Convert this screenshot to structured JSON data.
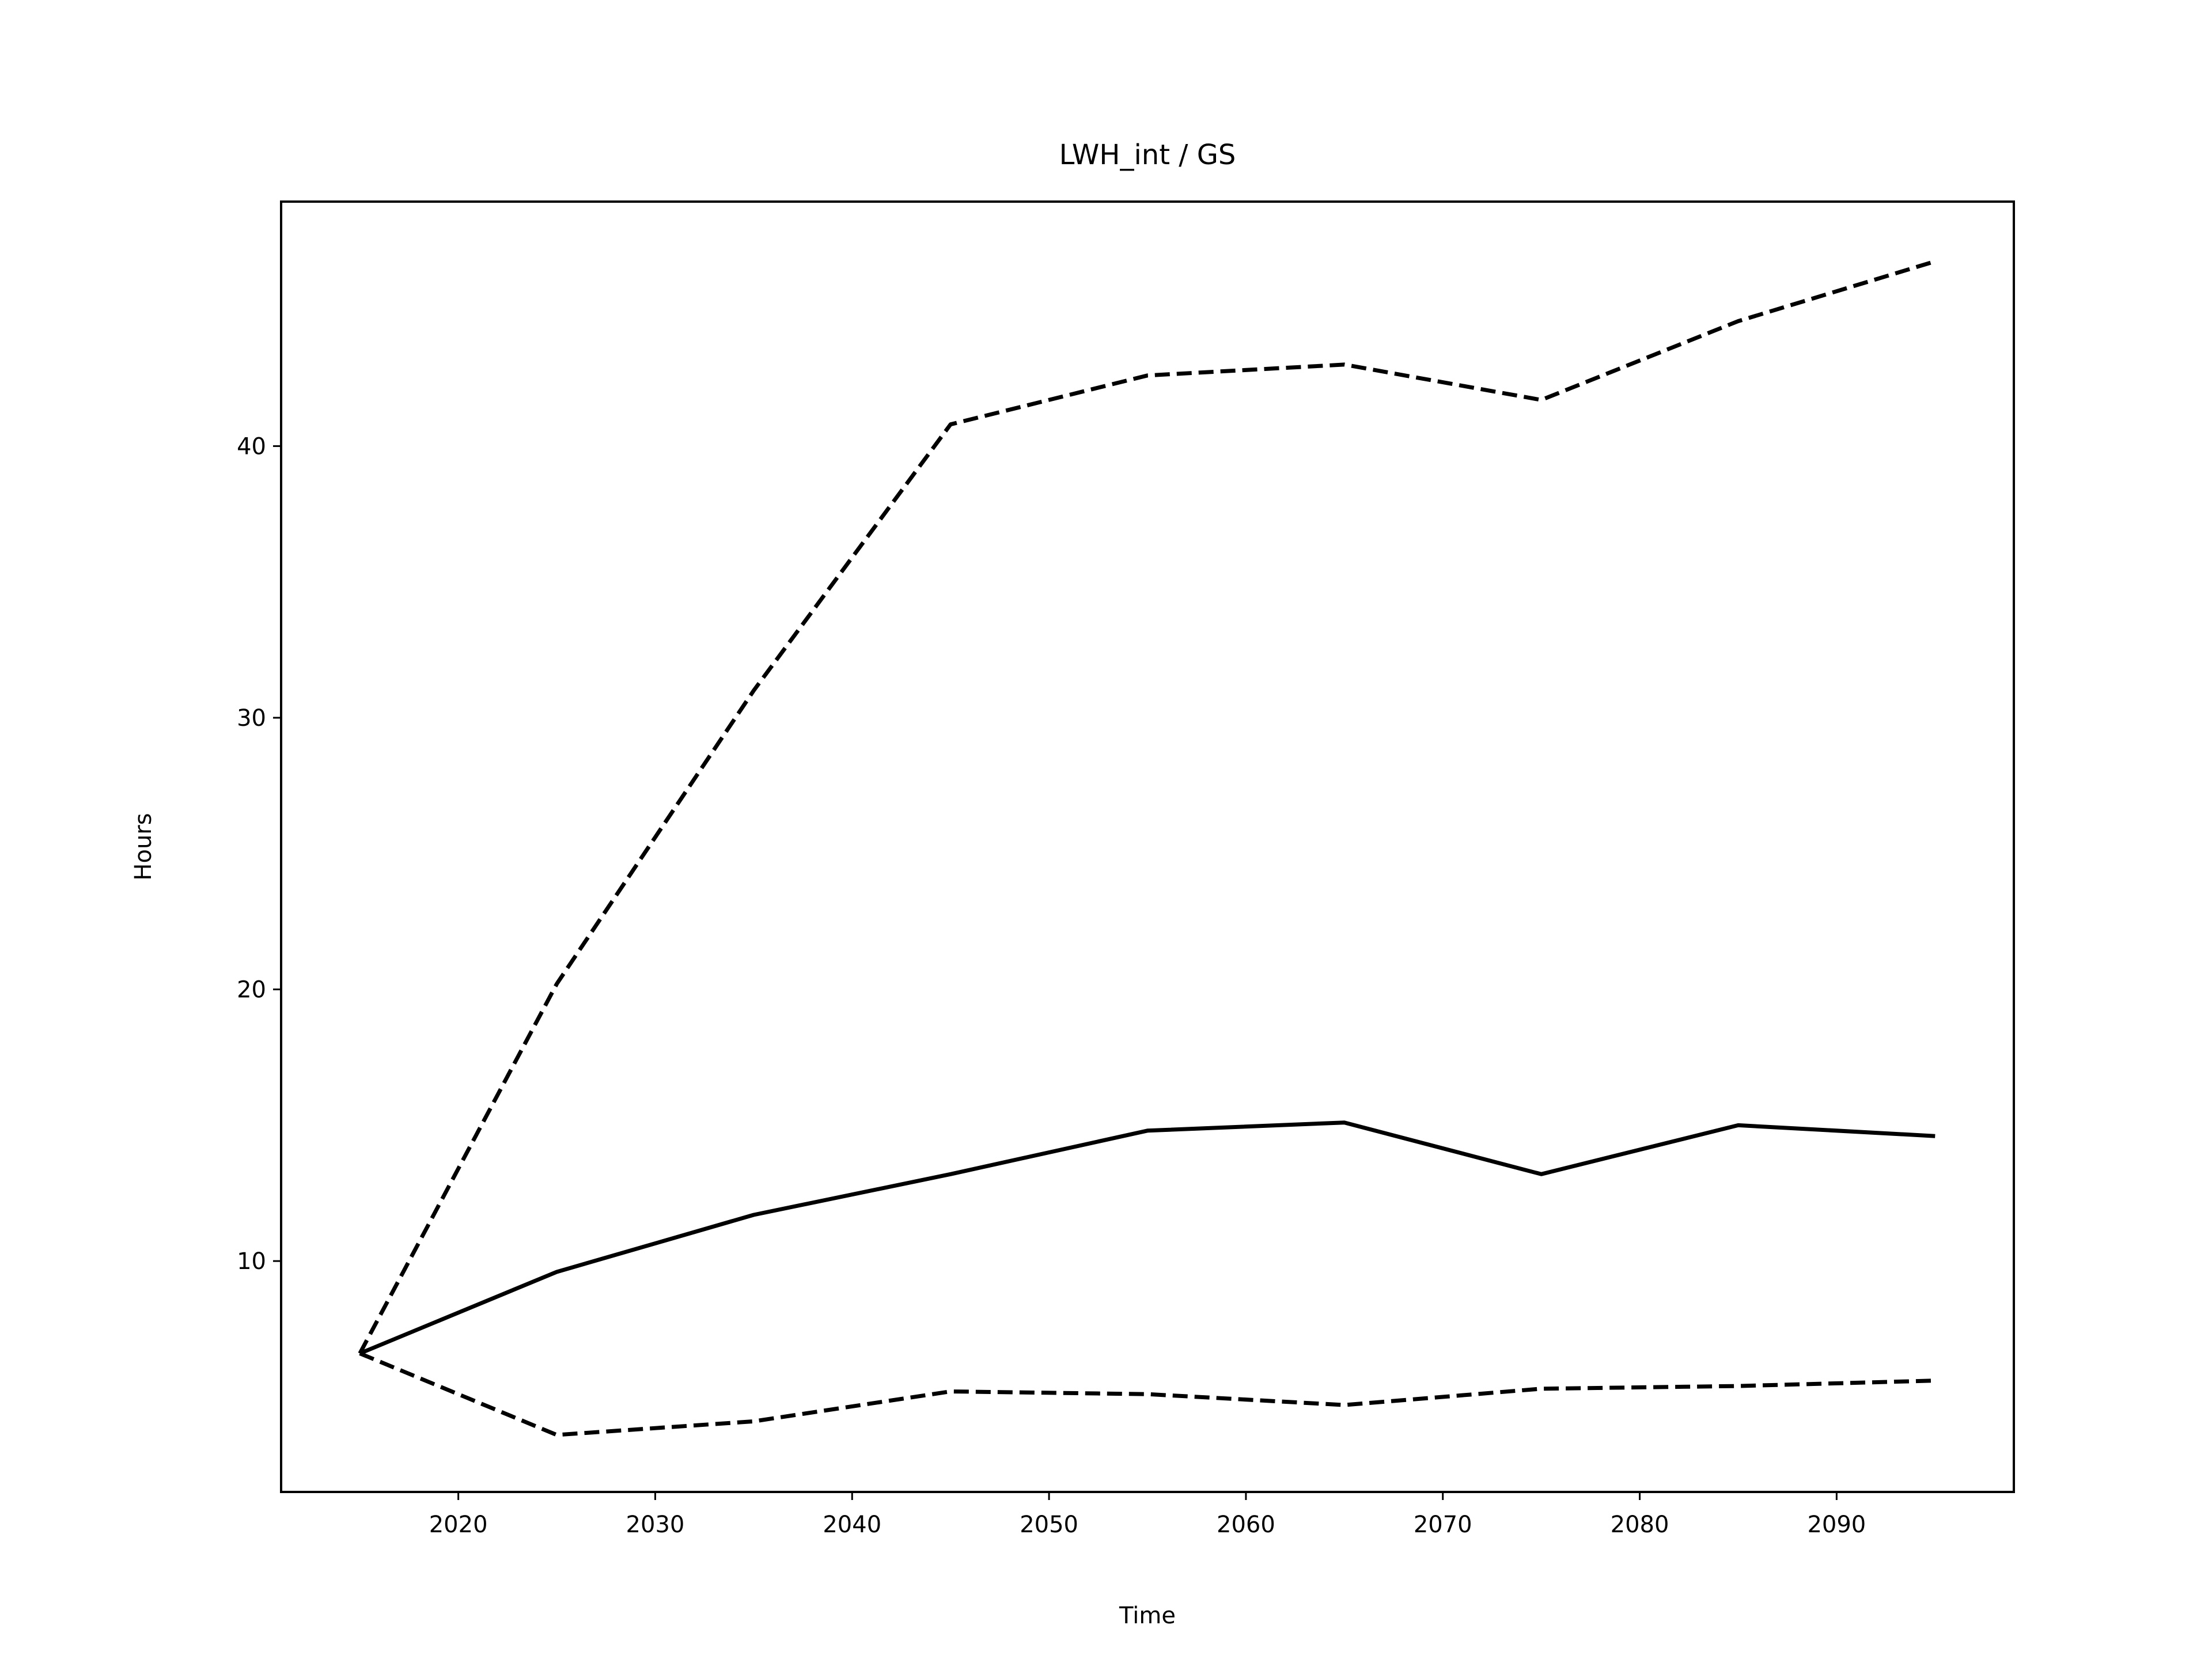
{
  "chart_data": {
    "type": "line",
    "title": "LWH_int / GS",
    "xlabel": "Time",
    "ylabel": "Hours",
    "xlim": [
      2011,
      2099
    ],
    "ylim": [
      1.5,
      49
    ],
    "x_ticks": [
      2020,
      2030,
      2040,
      2050,
      2060,
      2070,
      2080,
      2090
    ],
    "y_ticks": [
      10,
      20,
      30,
      40
    ],
    "grid": false,
    "legend": "none",
    "x": [
      2015,
      2025,
      2035,
      2045,
      2055,
      2065,
      2075,
      2085,
      2095
    ],
    "series": [
      {
        "style": "solid",
        "color": "#000000",
        "values": [
          6.6,
          9.6,
          11.7,
          13.2,
          14.8,
          15.1,
          13.2,
          15.0,
          14.6
        ]
      },
      {
        "style": "dashed",
        "color": "#000000",
        "values": [
          6.6,
          20.2,
          31.0,
          40.8,
          42.6,
          43.0,
          41.7,
          44.6,
          46.8
        ]
      },
      {
        "style": "dashed",
        "color": "#000000",
        "values": [
          6.6,
          3.6,
          4.1,
          5.2,
          5.1,
          4.7,
          5.3,
          5.4,
          5.6
        ]
      }
    ]
  }
}
